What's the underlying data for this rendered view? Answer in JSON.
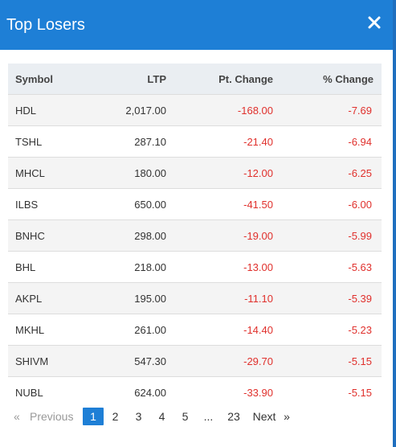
{
  "dialog": {
    "title": "Top Losers"
  },
  "table": {
    "headers": [
      "Symbol",
      "LTP",
      "Pt. Change",
      "% Change"
    ],
    "rows": [
      {
        "symbol": "HDL",
        "ltp": "2,017.00",
        "pt_change": "-168.00",
        "pct_change": "-7.69"
      },
      {
        "symbol": "TSHL",
        "ltp": "287.10",
        "pt_change": "-21.40",
        "pct_change": "-6.94"
      },
      {
        "symbol": "MHCL",
        "ltp": "180.00",
        "pt_change": "-12.00",
        "pct_change": "-6.25"
      },
      {
        "symbol": "ILBS",
        "ltp": "650.00",
        "pt_change": "-41.50",
        "pct_change": "-6.00"
      },
      {
        "symbol": "BNHC",
        "ltp": "298.00",
        "pt_change": "-19.00",
        "pct_change": "-5.99"
      },
      {
        "symbol": "BHL",
        "ltp": "218.00",
        "pt_change": "-13.00",
        "pct_change": "-5.63"
      },
      {
        "symbol": "AKPL",
        "ltp": "195.00",
        "pt_change": "-11.10",
        "pct_change": "-5.39"
      },
      {
        "symbol": "MKHL",
        "ltp": "261.00",
        "pt_change": "-14.40",
        "pct_change": "-5.23"
      },
      {
        "symbol": "SHIVM",
        "ltp": "547.30",
        "pt_change": "-29.70",
        "pct_change": "-5.15"
      },
      {
        "symbol": "NUBL",
        "ltp": "624.00",
        "pt_change": "-33.90",
        "pct_change": "-5.15"
      }
    ]
  },
  "pagination": {
    "first_arrow": "«",
    "previous_label": "Previous",
    "pages": [
      "1",
      "2",
      "3",
      "4",
      "5"
    ],
    "ellipsis": "...",
    "last_page": "23",
    "next_label": "Next",
    "last_arrow": "»",
    "current_page": "1"
  },
  "colors": {
    "header_blue": "#1e7fd6",
    "negative_red": "#e0302c"
  },
  "icons": {
    "close": "close-icon"
  }
}
